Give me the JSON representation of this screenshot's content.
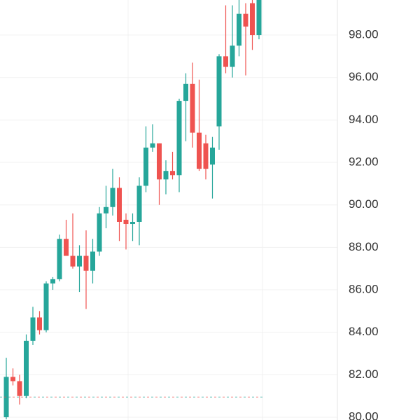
{
  "chart_data": {
    "type": "candlestick",
    "open": [
      80.0,
      81.9,
      81.7,
      81.0,
      83.6,
      84.7,
      84.1,
      86.3,
      86.5,
      88.4,
      87.6,
      87.1,
      87.6,
      86.9,
      87.8,
      89.6,
      89.9,
      90.8,
      89.3,
      89.1,
      89.2,
      90.9,
      92.7,
      92.9,
      91.2,
      91.6,
      91.4,
      94.9,
      95.7,
      93.4,
      92.9,
      91.9,
      93.7,
      97.0,
      96.5,
      97.5,
      99.0,
      99.5,
      98.0
    ],
    "high": [
      82.8,
      82.3,
      82.0,
      83.9,
      85.2,
      85.0,
      86.4,
      86.6,
      88.6,
      89.3,
      89.6,
      88.1,
      88.8,
      88.4,
      89.9,
      90.9,
      91.7,
      91.3,
      89.6,
      89.6,
      91.3,
      93.7,
      93.8,
      92.9,
      92.1,
      92.5,
      95.0,
      96.2,
      96.7,
      95.9,
      93.3,
      93.2,
      97.1,
      99.4,
      99.4,
      100.0,
      99.5,
      100.2,
      100.2
    ],
    "low": [
      79.9,
      81.5,
      80.6,
      80.9,
      83.4,
      83.9,
      84.0,
      86.0,
      86.4,
      87.6,
      87.0,
      85.9,
      85.1,
      86.3,
      87.6,
      88.9,
      89.5,
      88.3,
      87.9,
      88.3,
      88.1,
      90.6,
      92.5,
      90.0,
      90.5,
      91.2,
      90.6,
      93.0,
      92.7,
      91.6,
      91.2,
      90.3,
      92.6,
      96.2,
      96.0,
      97.0,
      96.1,
      97.3,
      97.8
    ],
    "close": [
      81.9,
      81.7,
      81.0,
      83.6,
      84.7,
      84.1,
      86.3,
      86.5,
      88.4,
      87.6,
      87.1,
      87.6,
      86.9,
      87.8,
      89.6,
      89.9,
      90.8,
      89.2,
      89.1,
      89.2,
      90.9,
      92.7,
      92.9,
      91.2,
      91.6,
      91.4,
      94.9,
      95.7,
      93.4,
      91.7,
      91.7,
      92.7,
      97.0,
      96.5,
      97.5,
      99.0,
      98.4,
      98.0,
      99.8
    ],
    "up_color": "#26a69a",
    "down_color": "#ef5350",
    "price_line": 80.95,
    "ylim": [
      79.87,
      99.65
    ],
    "yticks": [
      {
        "value": 80,
        "label": "80.00"
      },
      {
        "value": 82,
        "label": "82.00"
      },
      {
        "value": 84,
        "label": "84.00"
      },
      {
        "value": 86,
        "label": "86.00"
      },
      {
        "value": 88,
        "label": "88.00"
      },
      {
        "value": 90,
        "label": "90.00"
      },
      {
        "value": 92,
        "label": "92.00"
      },
      {
        "value": 94,
        "label": "94.00"
      },
      {
        "value": 96,
        "label": "96.00"
      },
      {
        "value": 98,
        "label": "98.00"
      }
    ],
    "grid": true
  }
}
